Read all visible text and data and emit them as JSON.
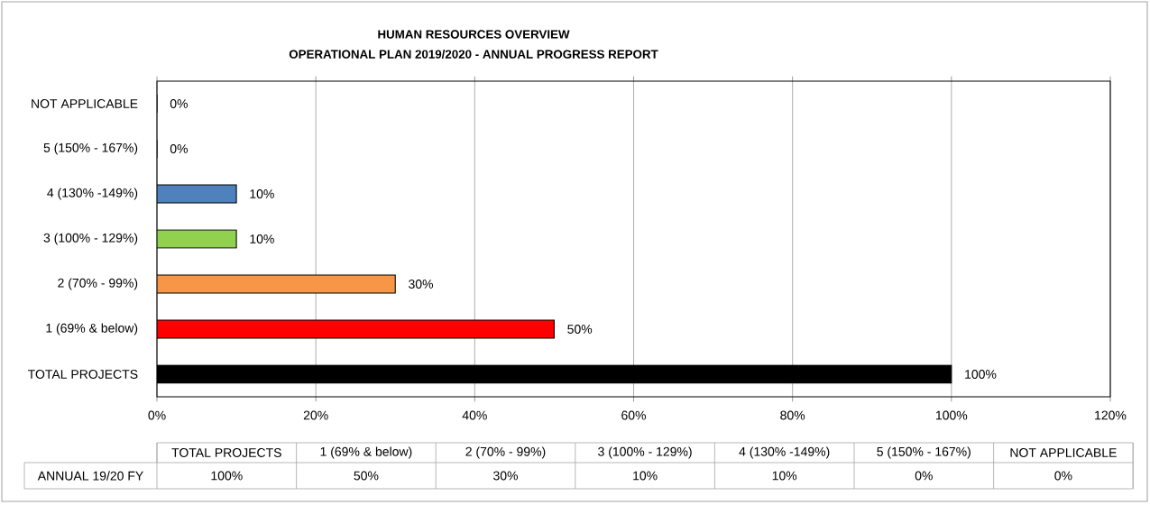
{
  "chart_data": {
    "type": "bar",
    "orientation": "horizontal",
    "title": "HUMAN RESOURCES OVERVIEW",
    "subtitle": "OPERATIONAL PLAN 2019/2020 - ANNUAL PROGRESS REPORT",
    "categories": [
      "NOT APPLICABLE",
      "5 (150% - 167%)",
      "4 (130% -149%)",
      "3 (100% - 129%)",
      "2 (70% - 99%)",
      "1 (69% & below)",
      "TOTAL PROJECTS"
    ],
    "series": [
      {
        "name": "ANNUAL 19/20 FY",
        "values": [
          0,
          0,
          10,
          10,
          30,
          50,
          100
        ],
        "value_labels": [
          "0%",
          "0%",
          "10%",
          "10%",
          "30%",
          "50%",
          "100%"
        ]
      }
    ],
    "colors": [
      "#ffffff",
      "#ffffff",
      "#4f81bd",
      "#92d050",
      "#f79646",
      "#ff0000",
      "#000000"
    ],
    "xlim": [
      0,
      120
    ],
    "xticks": [
      {
        "value": 0,
        "label": "0%"
      },
      {
        "value": 20,
        "label": "20%"
      },
      {
        "value": 40,
        "label": "40%"
      },
      {
        "value": 60,
        "label": "60%"
      },
      {
        "value": 80,
        "label": "80%"
      },
      {
        "value": 100,
        "label": "100%"
      },
      {
        "value": 120,
        "label": "120%"
      }
    ],
    "grid": "x"
  }
}
